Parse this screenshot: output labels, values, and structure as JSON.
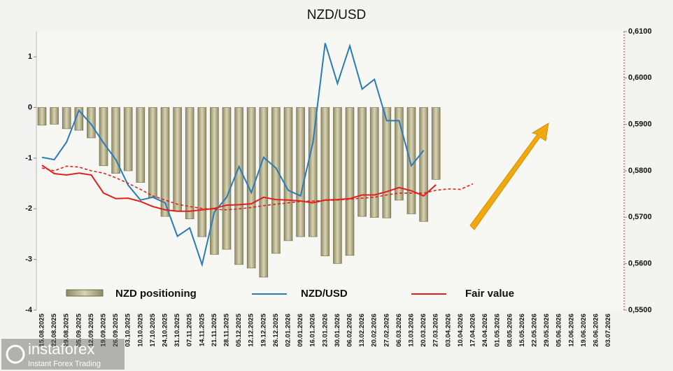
{
  "chart_data": {
    "type": "bar",
    "title": "NZD/USD",
    "categories": [
      "15.08.2025",
      "22.08.2025",
      "29.08.2025",
      "05.09.2025",
      "12.09.2025",
      "19.09.2025",
      "26.09.2025",
      "03.10.2025",
      "10.10.2025",
      "17.10.2025",
      "24.10.2025",
      "31.10.2025",
      "07.11.2025",
      "14.11.2025",
      "21.11.2025",
      "28.11.2025",
      "05.12.2025",
      "12.12.2025",
      "19.12.2025",
      "26.12.2025",
      "02.01.2026",
      "09.01.2026",
      "16.01.2026",
      "23.01.2026",
      "30.01.2026",
      "06.02.2026",
      "13.02.2026",
      "20.02.2026",
      "27.02.2026",
      "06.03.2026",
      "13.03.2026",
      "20.03.2026",
      "27.03.2026",
      "03.04.2026",
      "10.04.2026",
      "17.04.2026",
      "24.04.2026",
      "01.05.2026",
      "08.05.2026",
      "15.05.2026",
      "22.05.2026",
      "29.05.2026",
      "05.06.2026",
      "12.06.2026",
      "19.06.2026",
      "26.06.2026",
      "03.07.2026"
    ],
    "series": [
      {
        "name": "NZD positioning",
        "type": "bar",
        "color": "#b3ad86",
        "axis": "y",
        "values": [
          -0.35,
          -0.33,
          -0.42,
          -0.45,
          -0.6,
          -1.15,
          -1.3,
          -1.25,
          -1.48,
          -1.78,
          -2.15,
          -2.05,
          -2.2,
          -2.55,
          -2.9,
          -2.8,
          -3.1,
          -3.17,
          -3.35,
          -2.88,
          -2.63,
          -2.55,
          -2.55,
          -2.93,
          -3.08,
          -2.92,
          -2.15,
          -2.17,
          -2.18,
          -1.83,
          -2.1,
          -2.25,
          -1.42,
          null,
          null,
          null,
          null,
          null,
          null,
          null,
          null,
          null,
          null,
          null,
          null,
          null,
          null
        ]
      },
      {
        "name": "NZD/USD",
        "type": "line",
        "color": "#2b7bb9",
        "axis": "y2",
        "values": [
          0.5829,
          0.5824,
          0.5862,
          0.593,
          0.59,
          0.586,
          0.5824,
          0.5769,
          0.5737,
          0.5743,
          0.5731,
          0.5659,
          0.5677,
          0.5598,
          0.5711,
          0.5743,
          0.5809,
          0.5753,
          0.5829,
          0.5806,
          0.5758,
          0.5746,
          0.586,
          0.6075,
          0.5988,
          0.6069,
          0.5976,
          0.5997,
          0.5908,
          0.5908,
          0.5811,
          0.5844,
          null,
          null,
          null,
          null,
          null,
          null,
          null,
          null,
          null,
          null,
          null,
          null,
          null,
          null,
          null
        ]
      },
      {
        "name": "Fair value",
        "type": "line",
        "color": "#e0201b",
        "axis": "y2",
        "values": [
          0.5812,
          0.5794,
          0.5791,
          0.5795,
          0.5791,
          0.5752,
          0.574,
          0.5741,
          0.5734,
          0.5723,
          0.5716,
          0.5713,
          0.5713,
          0.5716,
          0.5719,
          0.5726,
          0.5727,
          0.5729,
          0.5743,
          0.5738,
          0.5737,
          0.5735,
          0.5731,
          0.5737,
          0.5738,
          0.574,
          0.5748,
          0.5748,
          0.5755,
          0.5764,
          0.5757,
          0.5746,
          0.577,
          null,
          null,
          null,
          null,
          null,
          null,
          null,
          null,
          null,
          null,
          null,
          null,
          null,
          null
        ]
      },
      {
        "type": "line",
        "color": "#e0201b",
        "axis": "y2",
        "dash": true,
        "values": [
          0.5806,
          0.58,
          0.581,
          0.5808,
          0.58,
          0.5795,
          0.5785,
          0.5773,
          0.576,
          0.5746,
          0.5737,
          0.5728,
          0.5723,
          0.5719,
          0.5717,
          0.5716,
          0.5718,
          0.5721,
          0.5725,
          0.5728,
          0.5731,
          0.5734,
          0.5735,
          0.5736,
          0.5737,
          0.5739,
          0.5741,
          0.5743,
          0.5748,
          0.5752,
          0.5752,
          0.5752,
          0.5758,
          0.5761,
          0.576,
          0.5772,
          null,
          null,
          null,
          null,
          null,
          null,
          null,
          null,
          null,
          null,
          null
        ]
      }
    ],
    "ylim": [
      -4,
      1.5
    ],
    "yticks": [
      -4,
      -3,
      -2,
      -1,
      0,
      1
    ],
    "y2lim": [
      0.55,
      0.61
    ],
    "y2ticks": [
      {
        "value": 0.55,
        "label": "0,5500"
      },
      {
        "value": 0.56,
        "label": "0,5600"
      },
      {
        "value": 0.57,
        "label": "0,5700"
      },
      {
        "value": 0.58,
        "label": "0,5800"
      },
      {
        "value": 0.59,
        "label": "0,5900"
      },
      {
        "value": 0.6,
        "label": "0,6000"
      },
      {
        "value": 0.61,
        "label": "0,6100"
      }
    ],
    "watermark": {
      "brand": "instaforex",
      "tagline": "Instant Forex Trading"
    }
  }
}
